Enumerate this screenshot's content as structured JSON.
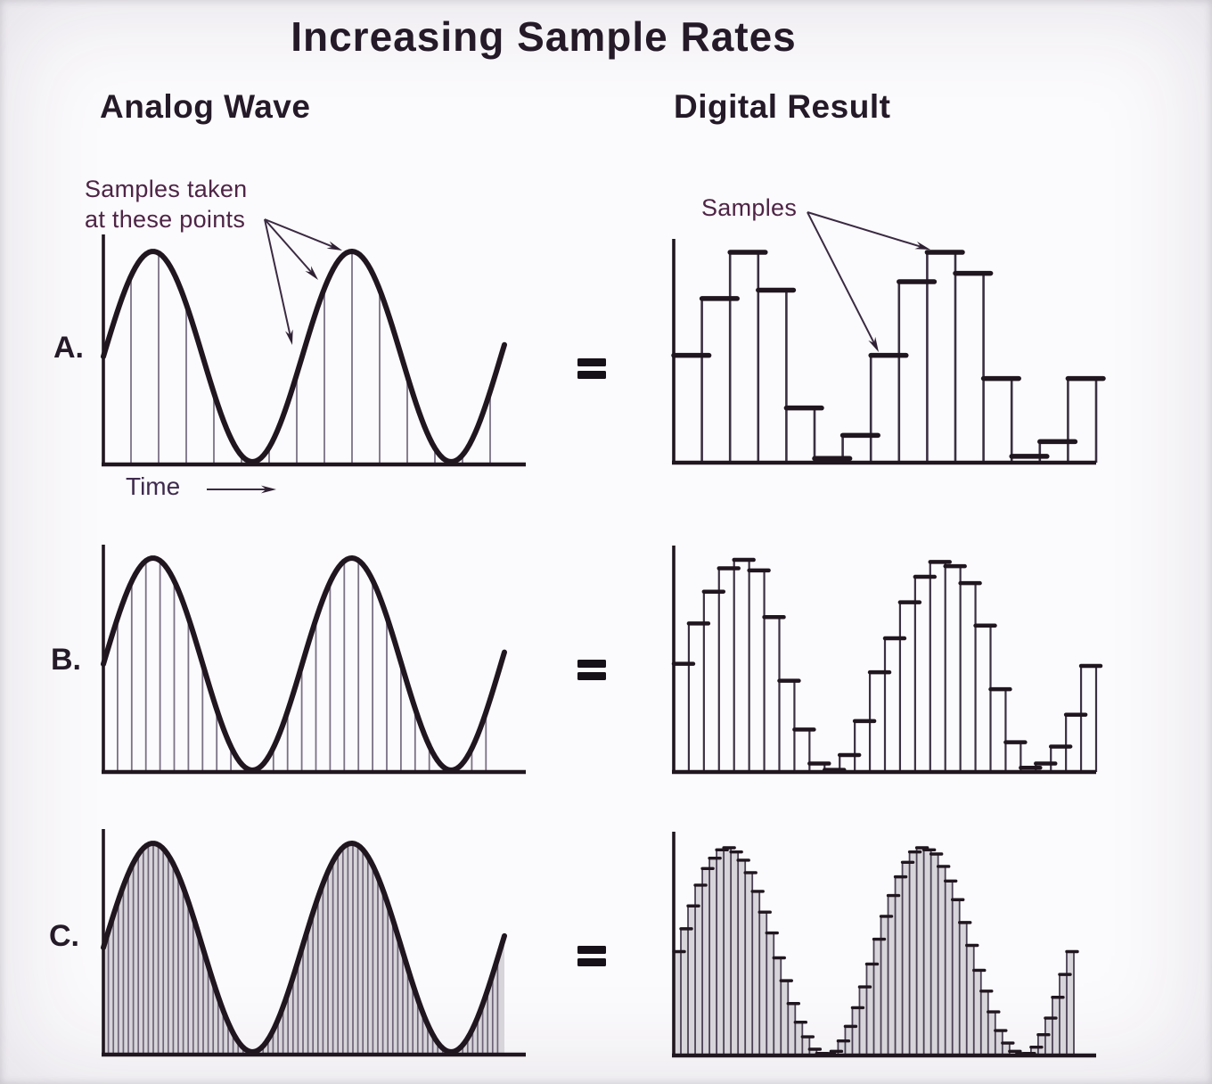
{
  "title": "Increasing Sample Rates",
  "columns": {
    "left": "Analog Wave",
    "right": "Digital Result"
  },
  "rows": [
    {
      "id": "A",
      "label": "A.",
      "equals": "="
    },
    {
      "id": "B",
      "label": "B.",
      "equals": "="
    },
    {
      "id": "C",
      "label": "C.",
      "equals": "="
    }
  ],
  "annotations": {
    "samples_taken_line1": "Samples taken",
    "samples_taken_line2": "at these points",
    "samples_label": "Samples",
    "time_label": "Time"
  },
  "colors": {
    "background": "#fbfafc",
    "ink": "#20161f",
    "bar_line": "#3a3042",
    "annotation_purple": "#4e2446",
    "arrow": "#3a2a42",
    "sample_line_grey": "#7b7186",
    "dense_line_grey": "#6e6478",
    "shade_grey": "#d7d4da"
  },
  "chart_data": [
    {
      "id": "analog-a",
      "type": "line",
      "panel": "Analog Wave A",
      "waveform": "sine",
      "cycles": 2,
      "sample_lines": 14
    },
    {
      "id": "digital-a",
      "type": "bar",
      "panel": "Digital Result A",
      "values": [
        0.51,
        0.78,
        1.0,
        0.82,
        0.26,
        0.02,
        0.13,
        0.51,
        0.86,
        1.0,
        0.9,
        0.4,
        0.03,
        0.1,
        0.4
      ]
    },
    {
      "id": "analog-b",
      "type": "line",
      "panel": "Analog Wave B",
      "waveform": "sine",
      "cycles": 2,
      "sample_lines": 27
    },
    {
      "id": "digital-b",
      "type": "bar",
      "panel": "Digital Result B",
      "values": [
        0.51,
        0.7,
        0.85,
        0.96,
        1.0,
        0.95,
        0.73,
        0.43,
        0.2,
        0.04,
        0.01,
        0.08,
        0.24,
        0.47,
        0.63,
        0.8,
        0.92,
        0.99,
        0.97,
        0.89,
        0.69,
        0.39,
        0.14,
        0.02,
        0.04,
        0.12,
        0.27,
        0.5
      ]
    },
    {
      "id": "analog-c",
      "type": "line",
      "panel": "Analog Wave C",
      "waveform": "sine",
      "cycles": 2,
      "sample_lines": 79
    },
    {
      "id": "digital-c",
      "type": "bar",
      "panel": "Digital Result C",
      "values": [
        0.5,
        0.61,
        0.72,
        0.82,
        0.9,
        0.95,
        0.99,
        1.0,
        0.98,
        0.94,
        0.88,
        0.79,
        0.69,
        0.59,
        0.47,
        0.36,
        0.25,
        0.16,
        0.09,
        0.03,
        0.01,
        0.0,
        0.02,
        0.07,
        0.14,
        0.23,
        0.33,
        0.44,
        0.56,
        0.67,
        0.77,
        0.86,
        0.93,
        0.98,
        1.0,
        0.99,
        0.97,
        0.91,
        0.84,
        0.75,
        0.64,
        0.53,
        0.41,
        0.31,
        0.21,
        0.12,
        0.06,
        0.02,
        0.0,
        0.01,
        0.04,
        0.1,
        0.18,
        0.28,
        0.39,
        0.5
      ]
    }
  ]
}
